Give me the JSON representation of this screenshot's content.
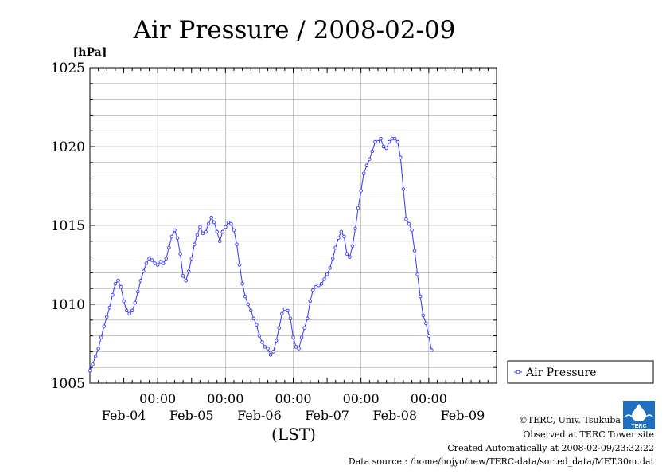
{
  "chart_data": {
    "type": "line",
    "title": "Air Pressure / 2008-02-09",
    "ylabel": "[hPa]",
    "xlabel": "(LST)",
    "ylim": [
      1005,
      1025
    ],
    "yticks": [
      "1005",
      "1010",
      "1015",
      "1020",
      "1025"
    ],
    "ytick_values": [
      1005,
      1010,
      1015,
      1020,
      1025
    ],
    "xlim_hours": [
      0,
      144
    ],
    "time_labels": [
      "00:00",
      "00:00",
      "00:00",
      "00:00",
      "00:00"
    ],
    "day_labels": [
      "Feb-04",
      "Feb-05",
      "Feb-06",
      "Feb-07",
      "Feb-08",
      "Feb-09"
    ],
    "grid": true,
    "legend_position": "right",
    "series": [
      {
        "name": "Air Pressure",
        "color": "#3333ff",
        "marker": "circle",
        "points": [
          [
            0,
            1005.8
          ],
          [
            1,
            1006.2
          ],
          [
            2,
            1006.7
          ],
          [
            3,
            1007.2
          ],
          [
            4,
            1007.9
          ],
          [
            5,
            1008.6
          ],
          [
            6,
            1009.2
          ],
          [
            7,
            1009.8
          ],
          [
            8,
            1010.6
          ],
          [
            9,
            1011.3
          ],
          [
            10,
            1011.5
          ],
          [
            11,
            1011.1
          ],
          [
            12,
            1010.2
          ],
          [
            13,
            1009.6
          ],
          [
            14,
            1009.4
          ],
          [
            15,
            1009.6
          ],
          [
            16,
            1010.1
          ],
          [
            17,
            1010.8
          ],
          [
            18,
            1011.5
          ],
          [
            19,
            1012.1
          ],
          [
            20,
            1012.6
          ],
          [
            21,
            1012.9
          ],
          [
            22,
            1012.8
          ],
          [
            23,
            1012.6
          ],
          [
            24,
            1012.5
          ],
          [
            25,
            1012.7
          ],
          [
            26,
            1012.6
          ],
          [
            27,
            1012.9
          ],
          [
            28,
            1013.6
          ],
          [
            29,
            1014.3
          ],
          [
            30,
            1014.7
          ],
          [
            31,
            1014.2
          ],
          [
            32,
            1013.2
          ],
          [
            33,
            1011.8
          ],
          [
            34,
            1011.5
          ],
          [
            35,
            1012.1
          ],
          [
            36,
            1012.9
          ],
          [
            37,
            1013.8
          ],
          [
            38,
            1014.4
          ],
          [
            39,
            1014.9
          ],
          [
            40,
            1014.5
          ],
          [
            41,
            1014.6
          ],
          [
            42,
            1015.1
          ],
          [
            43,
            1015.5
          ],
          [
            44,
            1015.2
          ],
          [
            45,
            1014.6
          ],
          [
            46,
            1014.0
          ],
          [
            47,
            1014.6
          ],
          [
            48,
            1014.9
          ],
          [
            49,
            1015.2
          ],
          [
            50,
            1015.1
          ],
          [
            51,
            1014.7
          ],
          [
            52,
            1013.8
          ],
          [
            53,
            1012.5
          ],
          [
            54,
            1011.3
          ],
          [
            55,
            1010.5
          ],
          [
            56,
            1010.0
          ],
          [
            57,
            1009.6
          ],
          [
            58,
            1009.1
          ],
          [
            59,
            1008.7
          ],
          [
            60,
            1008.0
          ],
          [
            61,
            1007.6
          ],
          [
            62,
            1007.3
          ],
          [
            63,
            1007.2
          ],
          [
            64,
            1006.8
          ],
          [
            65,
            1007.0
          ],
          [
            66,
            1007.7
          ],
          [
            67,
            1008.5
          ],
          [
            68,
            1009.4
          ],
          [
            69,
            1009.7
          ],
          [
            70,
            1009.6
          ],
          [
            71,
            1009.1
          ],
          [
            72,
            1007.9
          ],
          [
            73,
            1007.3
          ],
          [
            74,
            1007.2
          ],
          [
            75,
            1007.9
          ],
          [
            76,
            1008.5
          ],
          [
            77,
            1009.1
          ],
          [
            78,
            1010.2
          ],
          [
            79,
            1010.9
          ],
          [
            80,
            1011.1
          ],
          [
            81,
            1011.2
          ],
          [
            82,
            1011.3
          ],
          [
            83,
            1011.6
          ],
          [
            84,
            1011.9
          ],
          [
            85,
            1012.3
          ],
          [
            86,
            1012.9
          ],
          [
            87,
            1013.6
          ],
          [
            88,
            1014.2
          ],
          [
            89,
            1014.6
          ],
          [
            90,
            1014.3
          ],
          [
            91,
            1013.2
          ],
          [
            92,
            1013.0
          ],
          [
            93,
            1013.7
          ],
          [
            94,
            1014.8
          ],
          [
            95,
            1016.1
          ],
          [
            96,
            1017.2
          ],
          [
            97,
            1018.3
          ],
          [
            98,
            1018.8
          ],
          [
            99,
            1019.2
          ],
          [
            100,
            1019.7
          ],
          [
            101,
            1020.3
          ],
          [
            102,
            1020.3
          ],
          [
            103,
            1020.5
          ],
          [
            104,
            1020.0
          ],
          [
            105,
            1019.9
          ],
          [
            106,
            1020.3
          ],
          [
            107,
            1020.5
          ],
          [
            108,
            1020.5
          ],
          [
            109,
            1020.3
          ],
          [
            110,
            1019.3
          ],
          [
            111,
            1017.3
          ],
          [
            112,
            1015.4
          ],
          [
            113,
            1015.1
          ],
          [
            114,
            1014.7
          ],
          [
            115,
            1013.4
          ],
          [
            116,
            1011.9
          ],
          [
            117,
            1010.5
          ],
          [
            118,
            1009.3
          ],
          [
            119,
            1008.8
          ],
          [
            120,
            1008.0
          ],
          [
            121,
            1007.1
          ]
        ]
      }
    ]
  },
  "footer": {
    "copyright": "©TERC, Univ. Tsukuba",
    "observed": "Observed at TERC Tower site",
    "created": "Created Automatically at 2008-02-09/23:32:22",
    "source": "Data source : /home/hojyo/new/TERC-data/sorted_data/MET.30m.dat"
  },
  "logo": {
    "text": "TERC",
    "color": "#1f6fc0"
  }
}
